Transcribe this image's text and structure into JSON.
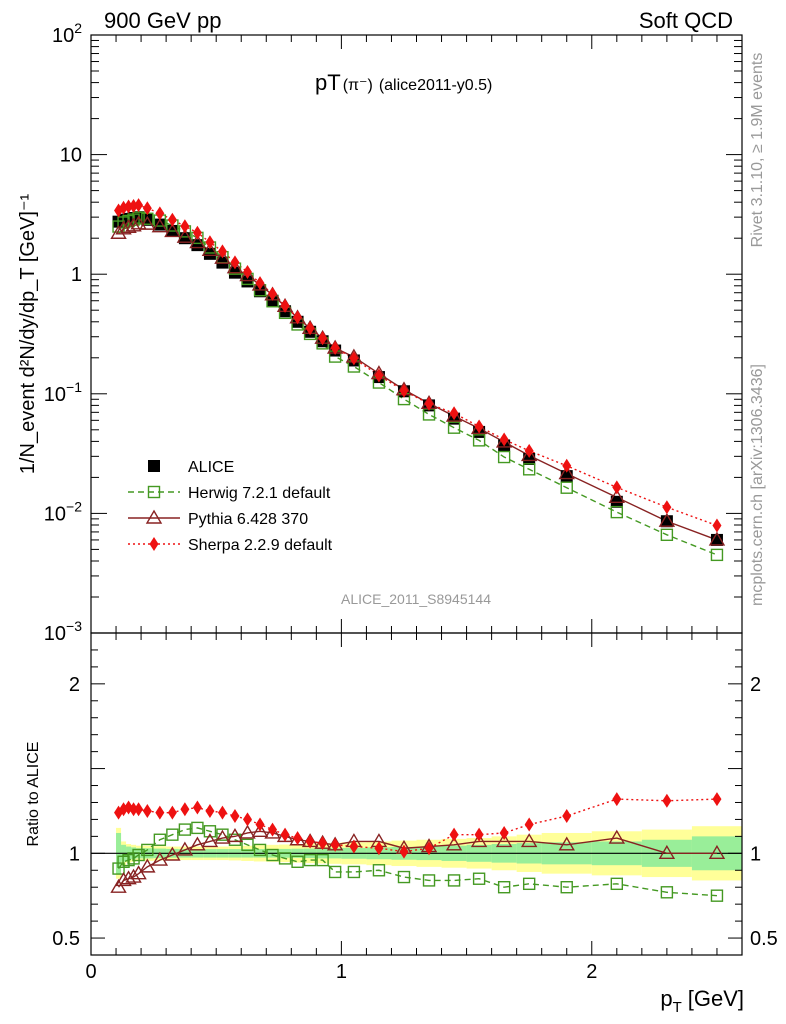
{
  "header": {
    "left": "900 GeV pp",
    "right": "Soft QCD"
  },
  "side_labels": {
    "rivet": "Rivet 3.1.10, ≥ 1.9M events",
    "mcplots": "mcplots.cern.ch [arXiv:1306.3436]"
  },
  "chart_data": {
    "type": "scatter",
    "title_main": "pT",
    "title_particle": "(π⁻)",
    "title_tag": "(alice2011-y0.5)",
    "watermark": "ALICE_2011_S8945144",
    "xlabel_main": "p",
    "xlabel_sub": "T",
    "xlabel_unit": "[GeV]",
    "ylabel_upper": "1/N_event d²N/dy/dp_T [GeV]⁻¹",
    "ylabel_lower": "Ratio to ALICE",
    "xlim": [
      0,
      2.6
    ],
    "ylim_upper": [
      0.001,
      100
    ],
    "ylim_lower": [
      0.4,
      2.3
    ],
    "x_ticks": [
      {
        "v": 0,
        "label": "0"
      },
      {
        "v": 1,
        "label": "1"
      },
      {
        "v": 2,
        "label": "2"
      }
    ],
    "y_ticks_upper": [
      {
        "v": 100,
        "base": "10",
        "exp": "2"
      },
      {
        "v": 10,
        "base": "10",
        "exp": ""
      },
      {
        "v": 1,
        "base": "1",
        "exp": ""
      },
      {
        "v": 0.1,
        "base": "10",
        "exp": "−1"
      },
      {
        "v": 0.01,
        "base": "10",
        "exp": "−2"
      },
      {
        "v": 0.001,
        "base": "10",
        "exp": "−3"
      }
    ],
    "y_ticks_lower": [
      {
        "v": 0.5,
        "label": "0.5"
      },
      {
        "v": 1,
        "label": "1"
      },
      {
        "v": 2,
        "label": "2"
      }
    ],
    "x": [
      0.11,
      0.13,
      0.15,
      0.17,
      0.19,
      0.225,
      0.275,
      0.325,
      0.375,
      0.425,
      0.475,
      0.525,
      0.575,
      0.625,
      0.675,
      0.725,
      0.775,
      0.825,
      0.875,
      0.925,
      0.975,
      1.05,
      1.15,
      1.25,
      1.35,
      1.45,
      1.55,
      1.65,
      1.75,
      1.9,
      2.1,
      2.3,
      2.5
    ],
    "band_edges": [
      0.1,
      0.12,
      0.14,
      0.16,
      0.18,
      0.2,
      0.25,
      0.3,
      0.35,
      0.4,
      0.45,
      0.5,
      0.55,
      0.6,
      0.65,
      0.7,
      0.75,
      0.8,
      0.85,
      0.9,
      0.95,
      1.0,
      1.1,
      1.2,
      1.3,
      1.4,
      1.5,
      1.6,
      1.7,
      1.8,
      2.0,
      2.2,
      2.4,
      2.6
    ],
    "band_inner": [
      0.12,
      0.05,
      0.04,
      0.035,
      0.03,
      0.03,
      0.028,
      0.026,
      0.025,
      0.025,
      0.025,
      0.025,
      0.025,
      0.025,
      0.025,
      0.025,
      0.026,
      0.027,
      0.028,
      0.03,
      0.03,
      0.032,
      0.035,
      0.038,
      0.04,
      0.045,
      0.05,
      0.055,
      0.06,
      0.065,
      0.07,
      0.08,
      0.1
    ],
    "band_outer": [
      0.15,
      0.07,
      0.055,
      0.05,
      0.045,
      0.045,
      0.042,
      0.04,
      0.04,
      0.04,
      0.04,
      0.04,
      0.042,
      0.045,
      0.048,
      0.05,
      0.052,
      0.055,
      0.058,
      0.06,
      0.062,
      0.065,
      0.07,
      0.075,
      0.08,
      0.085,
      0.09,
      0.1,
      0.11,
      0.12,
      0.13,
      0.14,
      0.16
    ],
    "series": [
      {
        "name": "ALICE",
        "style": "data",
        "color": "#000000",
        "values": [
          2.75,
          2.85,
          2.9,
          2.95,
          3.0,
          2.85,
          2.6,
          2.3,
          2.0,
          1.75,
          1.48,
          1.25,
          1.03,
          0.87,
          0.72,
          0.6,
          0.49,
          0.4,
          0.33,
          0.275,
          0.23,
          0.19,
          0.138,
          0.105,
          0.08,
          0.062,
          0.048,
          0.037,
          0.0285,
          0.0205,
          0.0125,
          0.0086,
          0.006
        ]
      },
      {
        "name": "Herwig 7.2.1 default",
        "style": "herwig",
        "color": "#449922",
        "ratio": [
          0.91,
          0.95,
          0.96,
          0.97,
          0.99,
          1.02,
          1.08,
          1.11,
          1.14,
          1.15,
          1.13,
          1.11,
          1.08,
          1.05,
          1.02,
          0.99,
          0.97,
          0.95,
          0.96,
          0.96,
          0.89,
          0.89,
          0.9,
          0.86,
          0.84,
          0.84,
          0.85,
          0.8,
          0.82,
          0.8,
          0.82,
          0.77,
          0.75
        ]
      },
      {
        "name": "Pythia 6.428 370",
        "style": "pythia",
        "color": "#882222",
        "ratio": [
          0.8,
          0.84,
          0.85,
          0.86,
          0.88,
          0.92,
          0.96,
          0.99,
          1.02,
          1.05,
          1.07,
          1.09,
          1.1,
          1.12,
          1.13,
          1.12,
          1.1,
          1.08,
          1.07,
          1.06,
          1.05,
          1.07,
          1.07,
          1.03,
          1.04,
          1.05,
          1.07,
          1.07,
          1.07,
          1.05,
          1.09,
          1.0,
          1.0
        ]
      },
      {
        "name": "Sherpa 2.2.9 default",
        "style": "sherpa",
        "color": "#ee1111",
        "ratio": [
          1.24,
          1.26,
          1.27,
          1.26,
          1.26,
          1.25,
          1.24,
          1.24,
          1.26,
          1.27,
          1.25,
          1.24,
          1.22,
          1.2,
          1.17,
          1.14,
          1.11,
          1.09,
          1.07,
          1.06,
          1.05,
          1.04,
          1.03,
          1.01,
          1.03,
          1.11,
          1.11,
          1.12,
          1.17,
          1.22,
          1.32,
          1.31,
          1.32
        ]
      }
    ]
  }
}
